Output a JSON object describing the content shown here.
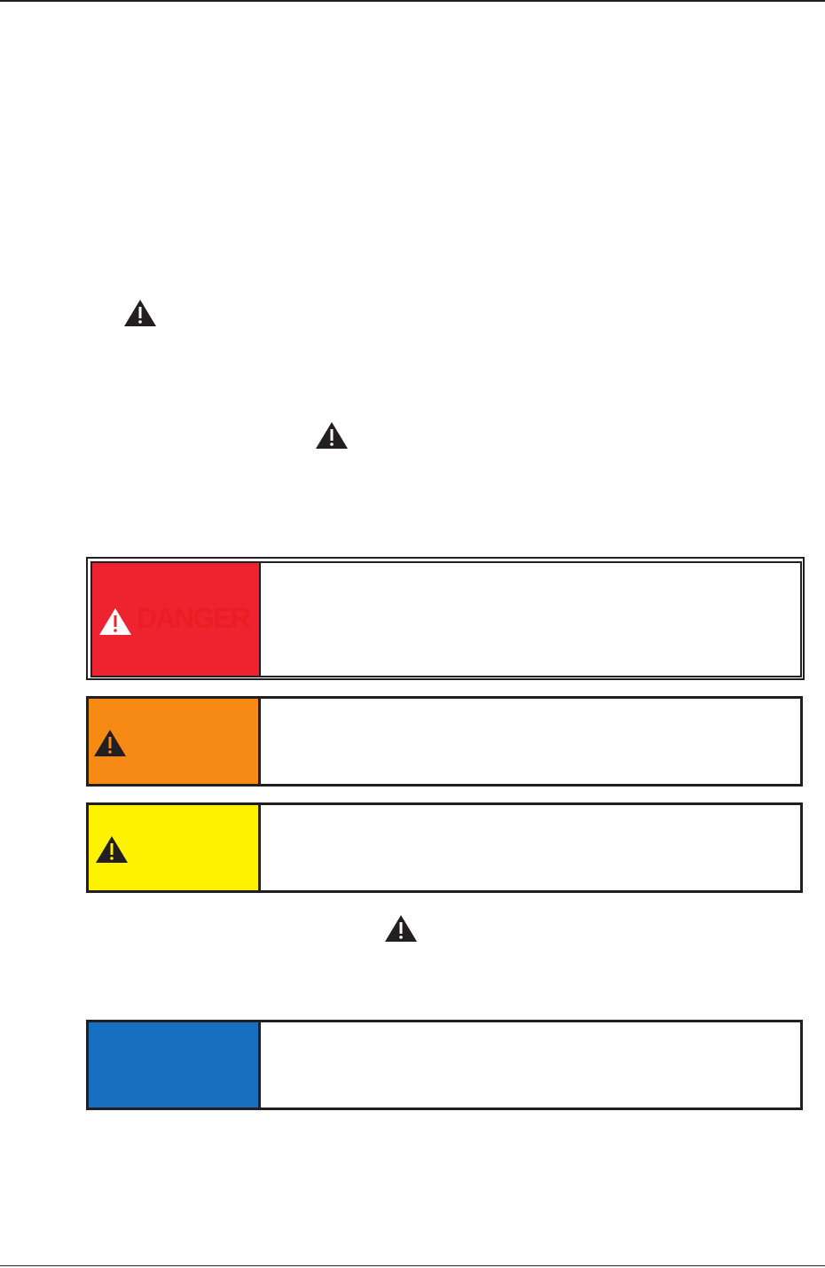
{
  "colors": {
    "danger": "#ef2330",
    "warning": "#f68a15",
    "caution": "#fff200",
    "notice": "#176fc1",
    "ink": "#231f20"
  },
  "icons": [
    "warning-triangle-icon"
  ],
  "danger": {
    "label": "DANGER"
  }
}
